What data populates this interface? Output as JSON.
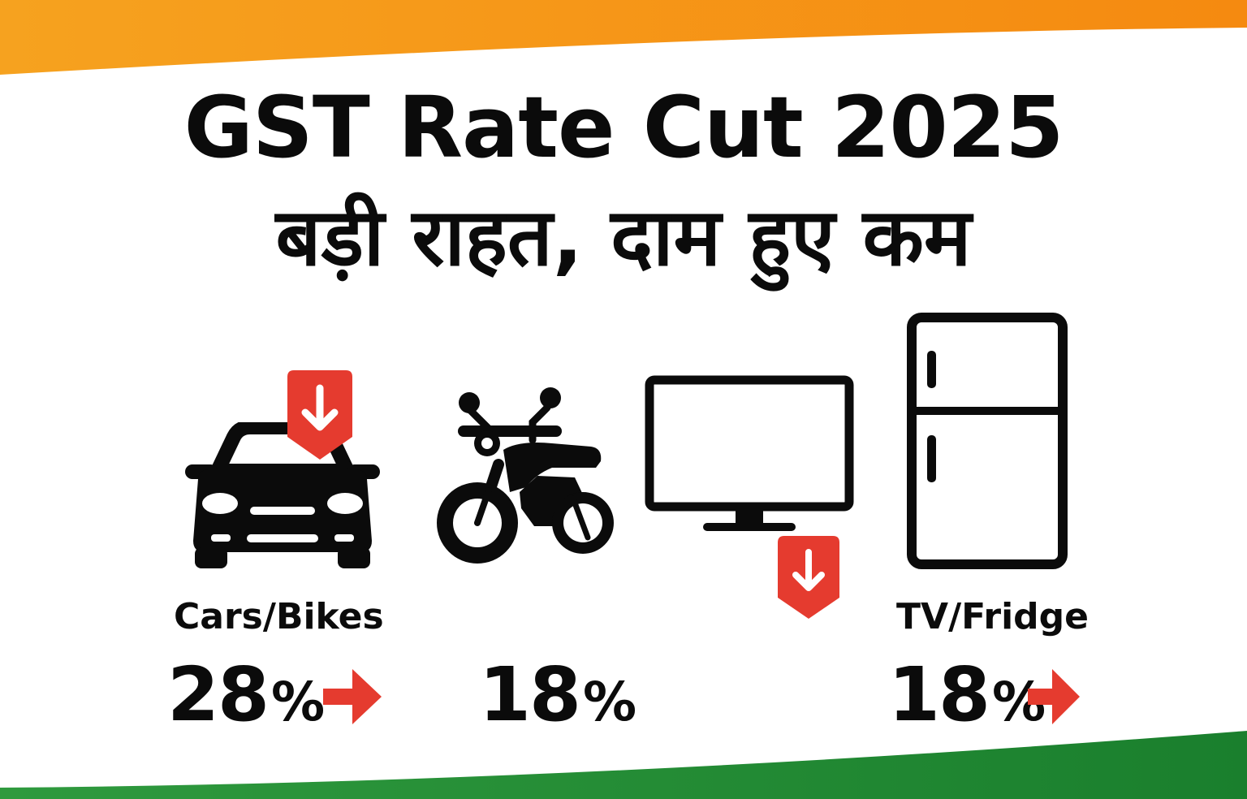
{
  "title": {
    "line1": "GST Rate Cut 2025",
    "line2": "बड़ी राहत, दाम हुए कम"
  },
  "colors": {
    "saffron": "#f7941d",
    "green": "#1e8a34",
    "accent_red": "#e53b2f",
    "ink": "#0b0b0b"
  },
  "items": [
    {
      "icon": "car-icon",
      "label": "Cars/Bikes",
      "rate": "28",
      "percent": "%",
      "arrow": "right-arrow-icon",
      "badge": "down-arrow-badge"
    },
    {
      "icon": "motorcycle-icon",
      "label": "",
      "rate": "18",
      "percent": "%"
    },
    {
      "icon": "television-icon",
      "label": "",
      "badge": "down-arrow-badge"
    },
    {
      "icon": "refrigerator-icon",
      "label": "TV/Fridge",
      "rate": "18",
      "percent": "%",
      "arrow": "right-arrow-icon"
    }
  ]
}
